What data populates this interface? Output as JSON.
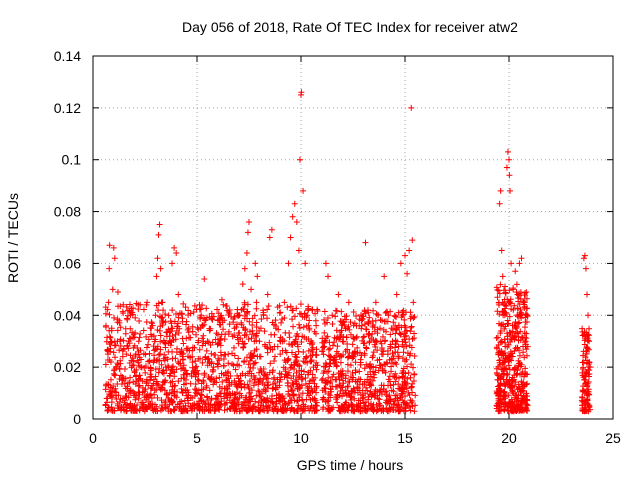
{
  "chart_data": {
    "type": "scatter",
    "title": "Day 056 of 2018, Rate Of TEC Index for receiver atw2",
    "xlabel": "GPS time / hours",
    "ylabel": "ROTI / TECUs",
    "xlim": [
      0,
      25
    ],
    "ylim": [
      0,
      0.14
    ],
    "xticks": [
      0,
      5,
      10,
      15,
      20,
      25
    ],
    "xtick_labels": [
      "0",
      "5",
      "10",
      "15",
      "20",
      "25"
    ],
    "yticks": [
      0,
      0.02,
      0.04,
      0.06,
      0.08,
      0.1,
      0.12,
      0.14
    ],
    "ytick_labels": [
      "0",
      "0.02",
      "0.04",
      "0.06",
      "0.08",
      "0.1",
      "0.12",
      "0.14"
    ],
    "grid": true,
    "marker": "+",
    "color": "#ff0000",
    "series": [
      {
        "name": "ROTI",
        "points": [
          [
            0.7,
            0.008
          ],
          [
            0.72,
            0.025
          ],
          [
            0.75,
            0.045
          ],
          [
            0.78,
            0.058
          ],
          [
            0.8,
            0.067
          ],
          [
            0.85,
            0.012
          ],
          [
            0.9,
            0.035
          ],
          [
            0.95,
            0.05
          ],
          [
            1.0,
            0.066
          ],
          [
            1.05,
            0.062
          ],
          [
            1.1,
            0.02
          ],
          [
            1.2,
            0.049
          ],
          [
            1.3,
            0.03
          ],
          [
            1.4,
            0.015
          ],
          [
            1.6,
            0.025
          ],
          [
            1.8,
            0.04
          ],
          [
            2.0,
            0.018
          ],
          [
            2.2,
            0.03
          ],
          [
            2.4,
            0.012
          ],
          [
            2.6,
            0.045
          ],
          [
            2.8,
            0.035
          ],
          [
            3.0,
            0.04
          ],
          [
            3.05,
            0.055
          ],
          [
            3.1,
            0.062
          ],
          [
            3.15,
            0.071
          ],
          [
            3.2,
            0.075
          ],
          [
            3.25,
            0.058
          ],
          [
            3.3,
            0.045
          ],
          [
            3.5,
            0.02
          ],
          [
            3.7,
            0.03
          ],
          [
            3.8,
            0.06
          ],
          [
            3.9,
            0.066
          ],
          [
            4.0,
            0.064
          ],
          [
            4.1,
            0.048
          ],
          [
            4.3,
            0.025
          ],
          [
            4.6,
            0.035
          ],
          [
            4.9,
            0.018
          ],
          [
            5.2,
            0.04
          ],
          [
            5.35,
            0.054
          ],
          [
            5.5,
            0.03
          ],
          [
            5.8,
            0.02
          ],
          [
            6.0,
            0.038
          ],
          [
            6.2,
            0.046
          ],
          [
            6.5,
            0.025
          ],
          [
            6.8,
            0.035
          ],
          [
            7.0,
            0.04
          ],
          [
            7.2,
            0.052
          ],
          [
            7.3,
            0.058
          ],
          [
            7.4,
            0.064
          ],
          [
            7.45,
            0.072
          ],
          [
            7.5,
            0.076
          ],
          [
            7.6,
            0.05
          ],
          [
            7.8,
            0.06
          ],
          [
            7.9,
            0.055
          ],
          [
            8.0,
            0.03
          ],
          [
            8.2,
            0.04
          ],
          [
            8.4,
            0.048
          ],
          [
            8.5,
            0.07
          ],
          [
            8.6,
            0.073
          ],
          [
            8.8,
            0.035
          ],
          [
            9.0,
            0.025
          ],
          [
            9.2,
            0.045
          ],
          [
            9.4,
            0.06
          ],
          [
            9.5,
            0.07
          ],
          [
            9.6,
            0.078
          ],
          [
            9.7,
            0.083
          ],
          [
            9.8,
            0.076
          ],
          [
            9.9,
            0.065
          ],
          [
            9.95,
            0.1
          ],
          [
            10.0,
            0.125
          ],
          [
            10.02,
            0.126
          ],
          [
            10.1,
            0.088
          ],
          [
            10.2,
            0.06
          ],
          [
            10.3,
            0.04
          ],
          [
            10.4,
            0.035
          ],
          [
            10.6,
            0.02
          ],
          [
            11.0,
            0.015
          ],
          [
            11.2,
            0.06
          ],
          [
            11.3,
            0.055
          ],
          [
            11.5,
            0.04
          ],
          [
            11.8,
            0.048
          ],
          [
            12.0,
            0.03
          ],
          [
            12.3,
            0.045
          ],
          [
            12.6,
            0.025
          ],
          [
            12.9,
            0.038
          ],
          [
            13.1,
            0.068
          ],
          [
            13.3,
            0.03
          ],
          [
            13.6,
            0.045
          ],
          [
            13.8,
            0.035
          ],
          [
            14.0,
            0.055
          ],
          [
            14.2,
            0.04
          ],
          [
            14.4,
            0.03
          ],
          [
            14.6,
            0.048
          ],
          [
            14.8,
            0.06
          ],
          [
            15.0,
            0.063
          ],
          [
            15.1,
            0.056
          ],
          [
            15.2,
            0.065
          ],
          [
            15.3,
            0.12
          ],
          [
            15.35,
            0.069
          ],
          [
            15.4,
            0.045
          ],
          [
            19.5,
            0.01
          ],
          [
            19.55,
            0.083
          ],
          [
            19.6,
            0.088
          ],
          [
            19.65,
            0.065
          ],
          [
            19.7,
            0.055
          ],
          [
            19.8,
            0.04
          ],
          [
            19.9,
            0.097
          ],
          [
            19.95,
            0.103
          ],
          [
            20.0,
            0.1
          ],
          [
            20.02,
            0.094
          ],
          [
            20.05,
            0.088
          ],
          [
            20.1,
            0.06
          ],
          [
            20.2,
            0.05
          ],
          [
            20.3,
            0.057
          ],
          [
            20.4,
            0.04
          ],
          [
            20.5,
            0.06
          ],
          [
            20.6,
            0.062
          ],
          [
            20.7,
            0.045
          ],
          [
            20.8,
            0.03
          ],
          [
            23.6,
            0.062
          ],
          [
            23.65,
            0.063
          ],
          [
            23.7,
            0.058
          ],
          [
            23.75,
            0.048
          ],
          [
            23.8,
            0.04
          ],
          [
            23.85,
            0.03
          ],
          [
            23.9,
            0.02
          ]
        ],
        "dense_segments": [
          {
            "x_range": [
              0.6,
              10.8
            ],
            "y_range": [
              0.003,
              0.045
            ],
            "count": 1500
          },
          {
            "x_range": [
              11.0,
              15.5
            ],
            "y_range": [
              0.003,
              0.042
            ],
            "count": 700
          },
          {
            "x_range": [
              19.4,
              20.9
            ],
            "y_range": [
              0.003,
              0.052
            ],
            "count": 450
          },
          {
            "x_range": [
              23.5,
              23.9
            ],
            "y_range": [
              0.003,
              0.035
            ],
            "count": 110
          }
        ]
      }
    ]
  }
}
